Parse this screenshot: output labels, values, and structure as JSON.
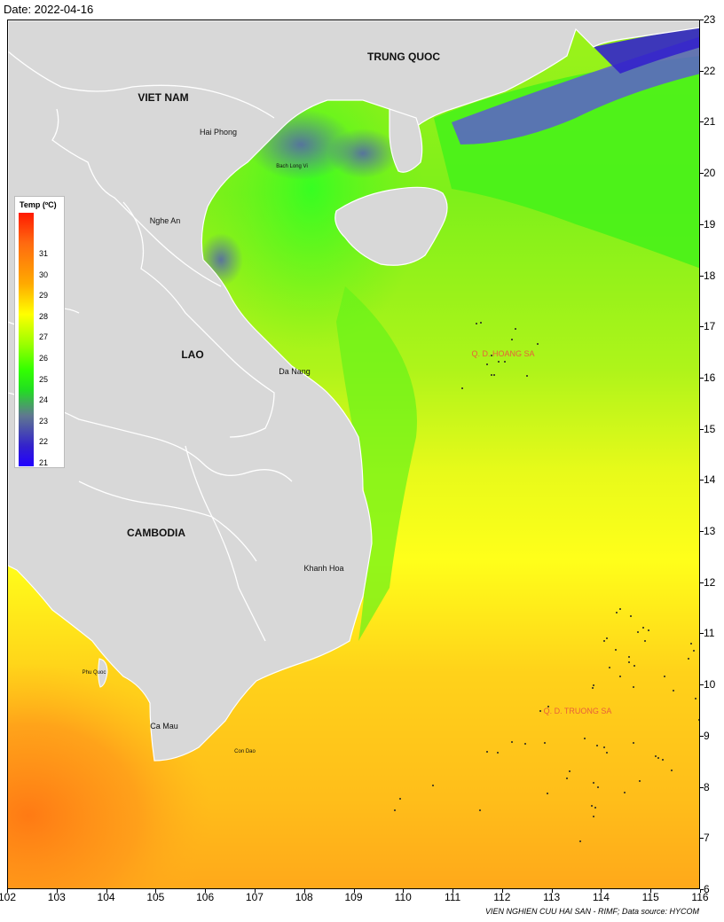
{
  "date_label": "Date: 2022-04-16",
  "map": {
    "x_ticks": [
      "102",
      "103",
      "104",
      "105",
      "106",
      "107",
      "108",
      "109",
      "110",
      "111",
      "112",
      "113",
      "114",
      "115",
      "116"
    ],
    "y_ticks": [
      "23",
      "22",
      "21",
      "20",
      "19",
      "18",
      "17",
      "16",
      "15",
      "14",
      "13",
      "12",
      "11",
      "10",
      "9",
      "8",
      "7",
      "6"
    ],
    "countries": {
      "china": "TRUNG QUOC",
      "vietnam": "VIET NAM",
      "laos": "LAO",
      "cambodia": "CAMBODIA"
    },
    "places": {
      "hai_phong": "Hai Phong",
      "bach_long_vi": "Bach Long Vi",
      "nghe_an": "Nghe An",
      "da_nang": "Da Nang",
      "khanh_hoa": "Khanh Hoa",
      "phu_quoc": "Phu Quoc",
      "ca_mau": "Ca Mau",
      "con_dao": "Con Dao"
    },
    "archipelagos": {
      "hoang_sa": "Q. D. HOANG SA",
      "truong_sa": "Q. D. TRUONG SA"
    }
  },
  "legend": {
    "title": "Temp (ºC)",
    "labels": [
      "31",
      "30",
      "29",
      "28",
      "27",
      "26",
      "25",
      "24",
      "23",
      "22",
      "21"
    ]
  },
  "footer": "VIEN NGHIEN CUU HAI SAN - RIMF; Data source: HYCOM",
  "colors": {
    "land": "#d8d8d8",
    "border": "#ffffff",
    "warm": "#ff8c1a",
    "mid": "#ffff1a",
    "cool": "#33ee22",
    "cold": "#3322cc"
  }
}
